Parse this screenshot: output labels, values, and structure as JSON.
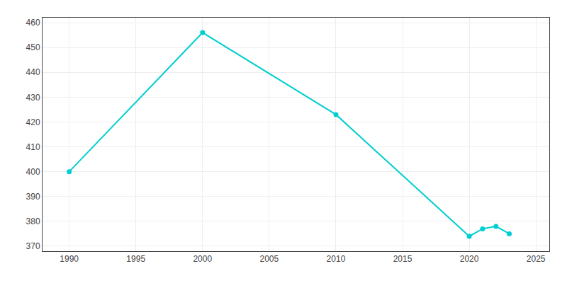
{
  "chart_data": {
    "type": "line",
    "x": [
      1990,
      2000,
      2010,
      2020,
      2021,
      2022,
      2023
    ],
    "values": [
      400,
      456,
      423,
      374,
      377,
      378,
      375
    ],
    "color": "#00CED1",
    "marker": "circle",
    "line_style": "solid",
    "xlim": [
      1988,
      2026
    ],
    "ylim": [
      368,
      462
    ],
    "xticks": [
      1990,
      1995,
      2000,
      2005,
      2010,
      2015,
      2020,
      2025
    ],
    "yticks": [
      370,
      380,
      390,
      400,
      410,
      420,
      430,
      440,
      450,
      460
    ],
    "grid": true
  }
}
